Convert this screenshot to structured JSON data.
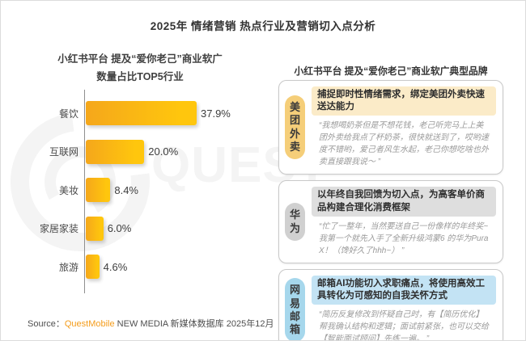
{
  "page": {
    "title": "2025年 情绪营销 热点行业及营销切入点分析",
    "watermark_text": "QUEST",
    "source_prefix": "Source：",
    "source_brand": "QuestMobile",
    "source_suffix": " NEW MEDIA 新媒体数据库 2025年12月"
  },
  "chart_data": {
    "type": "bar",
    "orientation": "horizontal",
    "title_line1": "小红书平台 提及“爱你老己”商业软广",
    "title_line2": "数量占比TOP5行业",
    "categories": [
      "餐饮",
      "互联网",
      "美妆",
      "家居家装",
      "旅游"
    ],
    "values": [
      37.9,
      20.0,
      8.4,
      6.0,
      4.6
    ],
    "value_labels": [
      "37.9%",
      "20.0%",
      "8.4%",
      "6.0%",
      "4.6%"
    ],
    "xlim": [
      0,
      40
    ],
    "grid": "off",
    "bar_color_left": "#F5A71B",
    "bar_color_right": "#FFC60D"
  },
  "brands": {
    "title": "小红书平台 提及“爱你老己”商业软广典型品牌",
    "cards": [
      {
        "name": "美团外卖",
        "pill_bg": "#F5CE79",
        "heading_bg": "#FBEBC8",
        "heading": "捕捉即时性情绪需求，绑定美团外卖快速送达能力",
        "quote": "“我想喝奶茶但是不想花钱，老己听完马上上美团外卖给我点了杯奶茶，很快就送到了，哎哟速度不错哟，爱己者风生水起，老己你想吃啥也外卖直接跟我说～ ”"
      },
      {
        "name": "华为",
        "pill_bg": "#D0D0D0",
        "heading_bg": "#DEDEDE",
        "heading": "以年终自我回馈为切入点，为高客单价商品构建合理化消费框架",
        "quote": "“忙了一整年，当然要送自己一份像样的年终奖~我第一个就先入手了全新升级鸿蒙6 的华为Pura X！（馋好久了hhh~） ”"
      },
      {
        "name": "网易邮箱",
        "pill_bg": "#A6D7EC",
        "heading_bg": "#C3E3F4",
        "heading": "邮箱AI功能切入求职痛点，将使用高效工具转化为可感知的自我关怀方式",
        "quote": "“简历反复修改到怀疑自己时，有【简历优化】帮我确认结构和逻辑；面试前紧张，也可以交给【智能面试顾问】先练一遍。 ”"
      }
    ]
  }
}
